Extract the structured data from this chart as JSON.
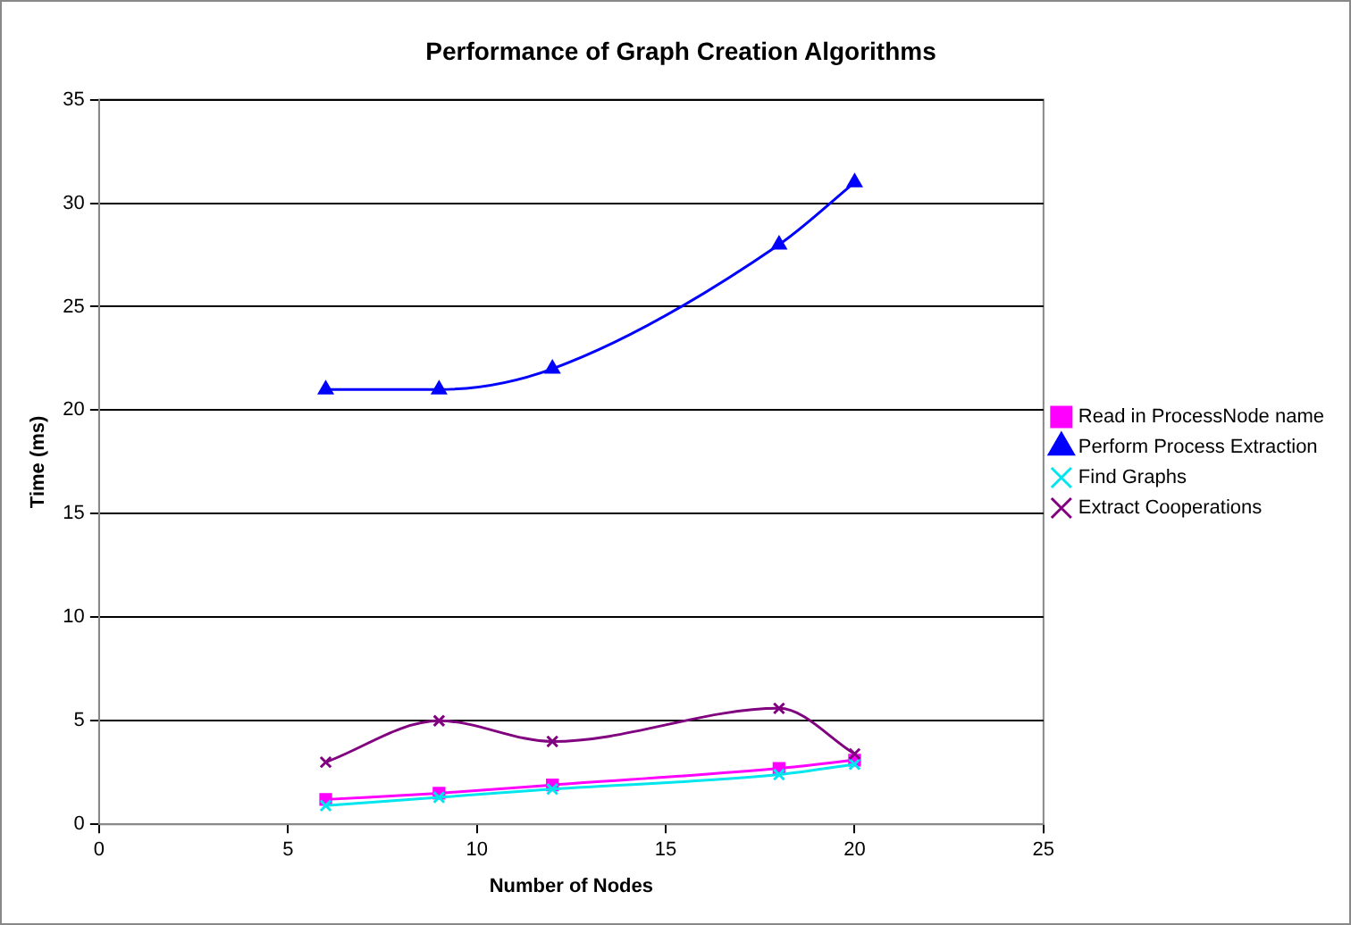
{
  "chart_data": {
    "type": "line",
    "title": "Performance of Graph Creation Algorithms",
    "xlabel": "Number of Nodes",
    "ylabel": "Time (ms)",
    "x": [
      6,
      9,
      12,
      18,
      20
    ],
    "series": [
      {
        "name": "Read in ProcessNode name",
        "color": "#ff00ff",
        "marker": "square",
        "values": [
          1.2,
          1.5,
          1.9,
          2.7,
          3.1
        ]
      },
      {
        "name": "Perform Process Extraction",
        "color": "#0000ff",
        "marker": "triangle",
        "values": [
          21,
          21,
          22,
          28,
          31
        ]
      },
      {
        "name": "Find Graphs",
        "color": "#00e5ee",
        "marker": "cross",
        "values": [
          0.9,
          1.3,
          1.7,
          2.4,
          2.9
        ]
      },
      {
        "name": "Extract Cooperations",
        "color": "#800080",
        "marker": "cross",
        "values": [
          3,
          5,
          4,
          5.6,
          3.4
        ]
      }
    ],
    "xlim": [
      0,
      25
    ],
    "xticks": [
      0,
      5,
      10,
      15,
      20,
      25
    ],
    "ylim": [
      0,
      35
    ],
    "yticks": [
      0,
      5,
      10,
      15,
      20,
      25,
      30,
      35
    ],
    "grid": "y",
    "legend": "right",
    "line_style": "solid"
  }
}
